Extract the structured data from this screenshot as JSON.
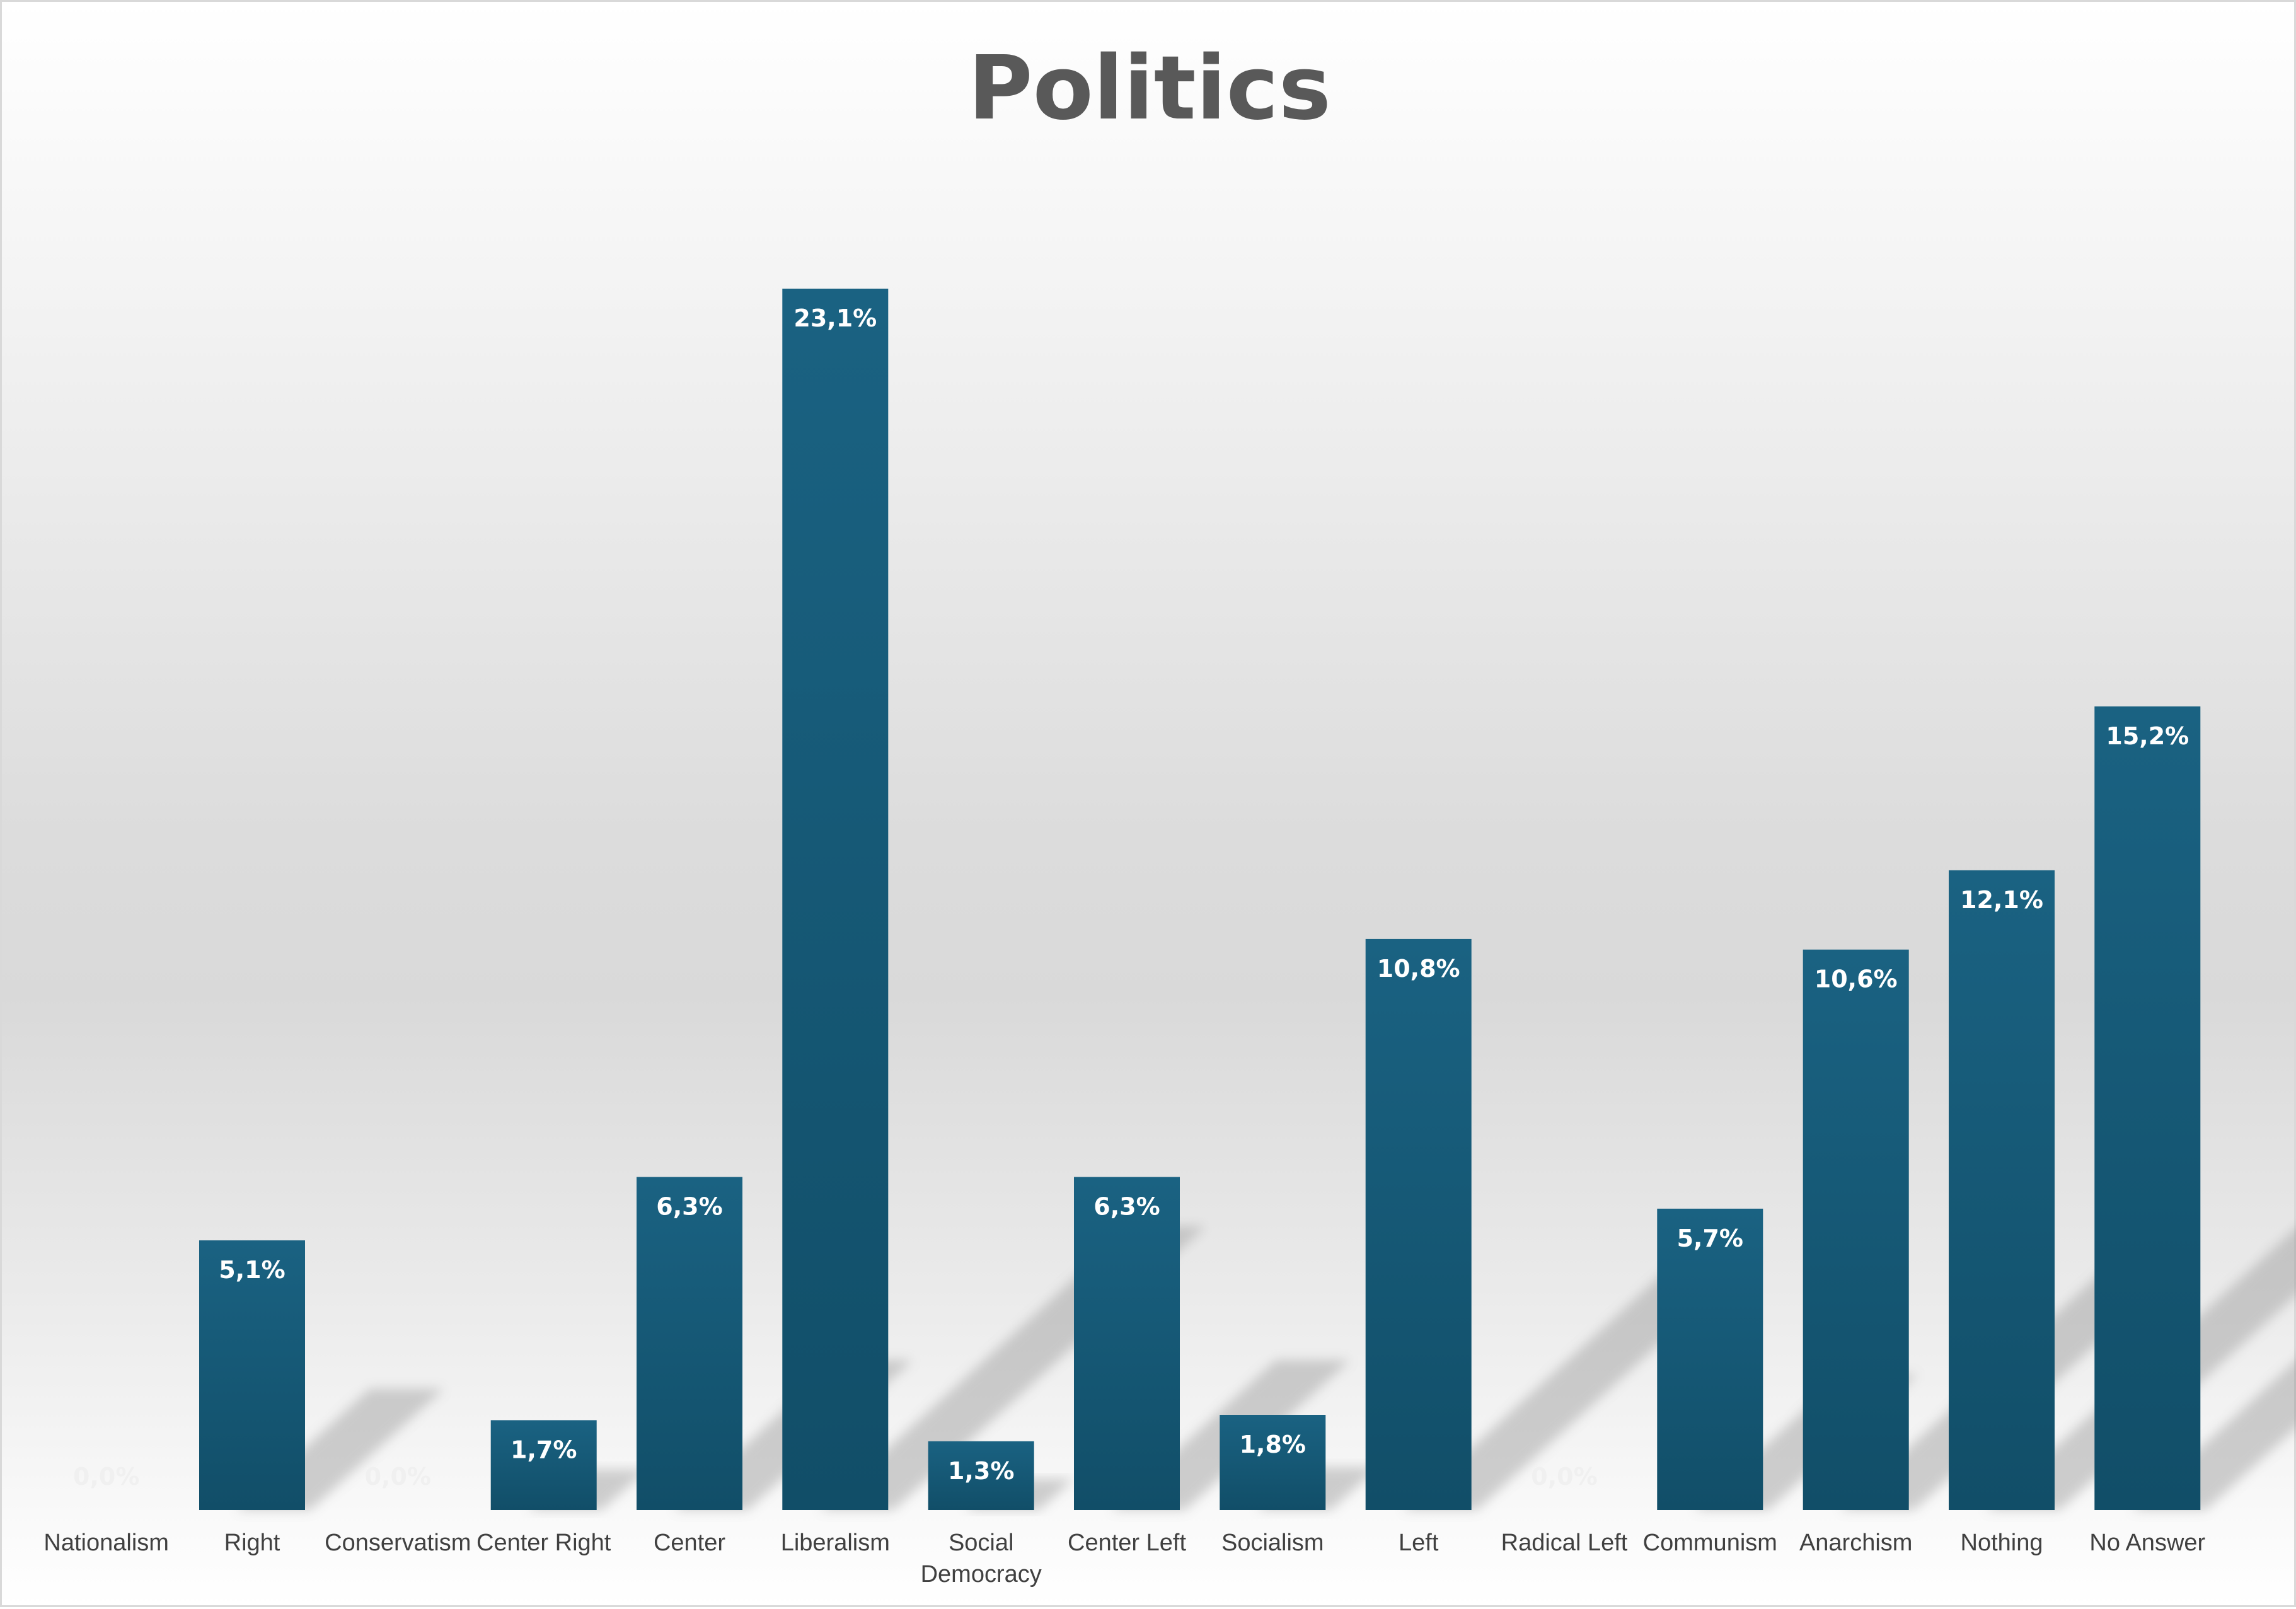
{
  "chart_data": {
    "type": "bar",
    "title": "Politics",
    "xlabel": "",
    "ylabel": "",
    "ylim": [
      0,
      25
    ],
    "grid": false,
    "legend": "none",
    "categories": [
      "Nationalism",
      "Right",
      "Conservatism",
      "Center Right",
      "Center",
      "Liberalism",
      "Social Democracy",
      "Center Left",
      "Socialism",
      "Left",
      "Radical Left",
      "Communism",
      "Anarchism",
      "Nothing",
      "No Answer"
    ],
    "values": [
      0.0,
      5.1,
      0.0,
      1.7,
      6.3,
      23.1,
      1.3,
      6.3,
      1.8,
      10.8,
      0.0,
      5.7,
      10.6,
      12.1,
      15.2
    ],
    "data_labels": [
      "0,0%",
      "5,1%",
      "0,0%",
      "1,7%",
      "6,3%",
      "23,1%",
      "1,3%",
      "6,3%",
      "1,8%",
      "10,8%",
      "0,0%",
      "5,7%",
      "10,6%",
      "12,1%",
      "15,2%"
    ],
    "colors": {
      "bar_top": "#1a6282",
      "bar_bottom": "#114e68",
      "label_light": "#ffffff",
      "label_zero": "#f0f0f0"
    }
  }
}
